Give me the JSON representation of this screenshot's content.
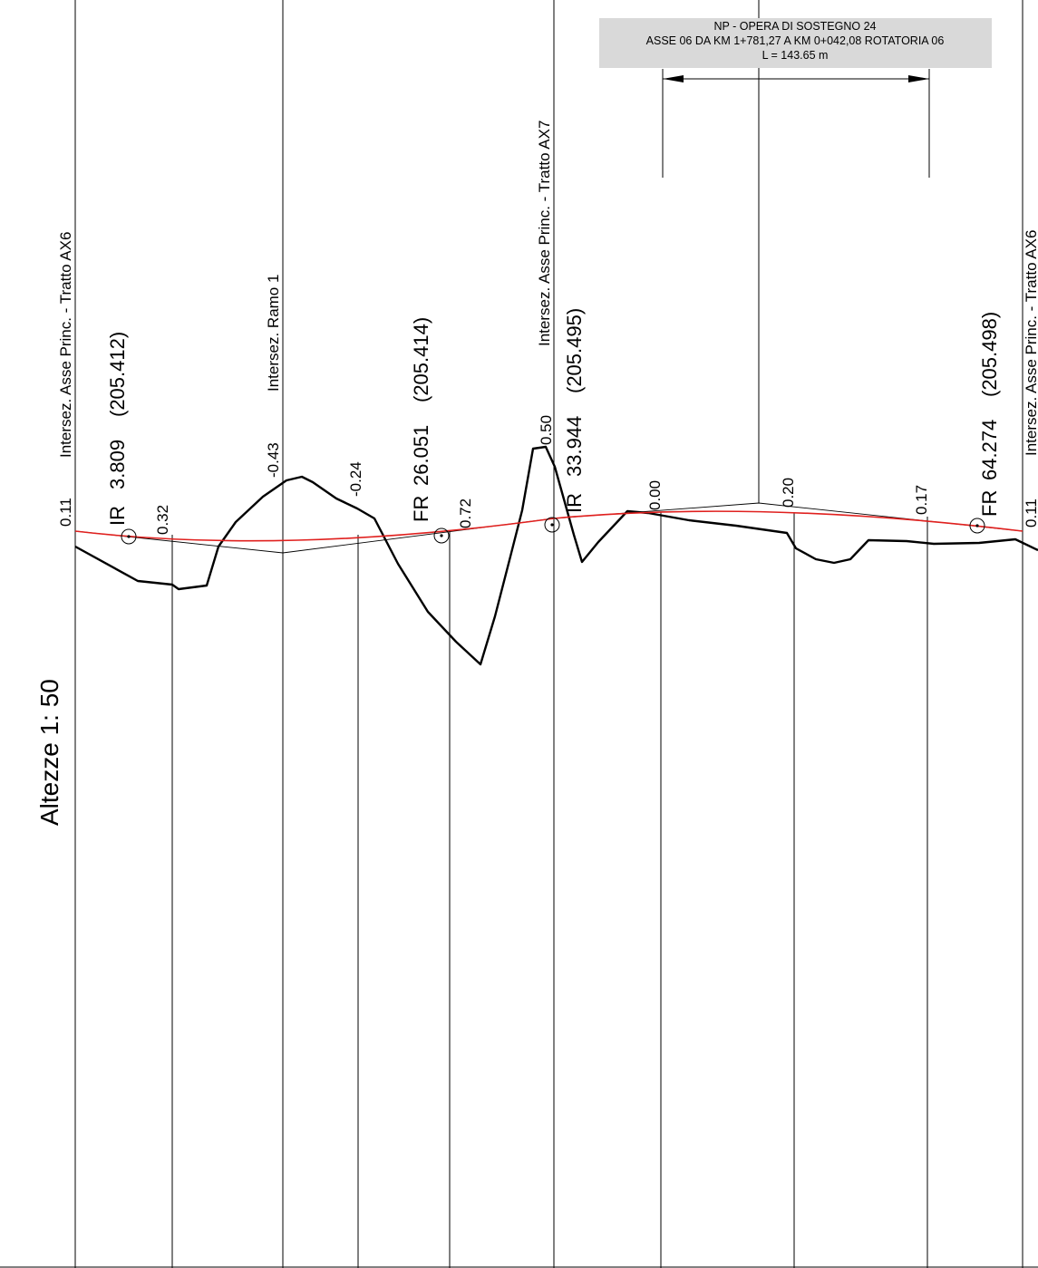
{
  "banner": {
    "line1": "NP - OPERA DI SOSTEGNO 24",
    "line2": "ASSE 06 DA KM 1+781,27 A KM 0+042,08 ROTATORIA 06",
    "line3": "L = 143.65 m",
    "background": "#d9d9d9"
  },
  "scale_label": "Altezze 1: 50",
  "intersections": [
    "Intersez. Asse Princ. - Tratto AX6",
    "Intersez. Ramo 1",
    "Intersez. Asse Princ. - Tratto AX7",
    "Intersez. Asse Princ. - Tratto AX6"
  ],
  "curves": [
    {
      "type": "IR",
      "value": "3.809",
      "elevation": "(205.412)"
    },
    {
      "type": "FR",
      "value": "26.051",
      "elevation": "(205.414)"
    },
    {
      "type": "IR",
      "value": "33.944",
      "elevation": "(205.495)"
    },
    {
      "type": "FR",
      "value": "64.274",
      "elevation": "(205.498)"
    }
  ],
  "differences": [
    "0.11",
    "0.32",
    "-0.43",
    "-0.24",
    "0.72",
    "0.50",
    "0.00",
    "0.20",
    "0.17",
    "0.11"
  ],
  "colors": {
    "design_profile": "#e0201e",
    "terrain": "#000000",
    "lines": "#000000"
  }
}
